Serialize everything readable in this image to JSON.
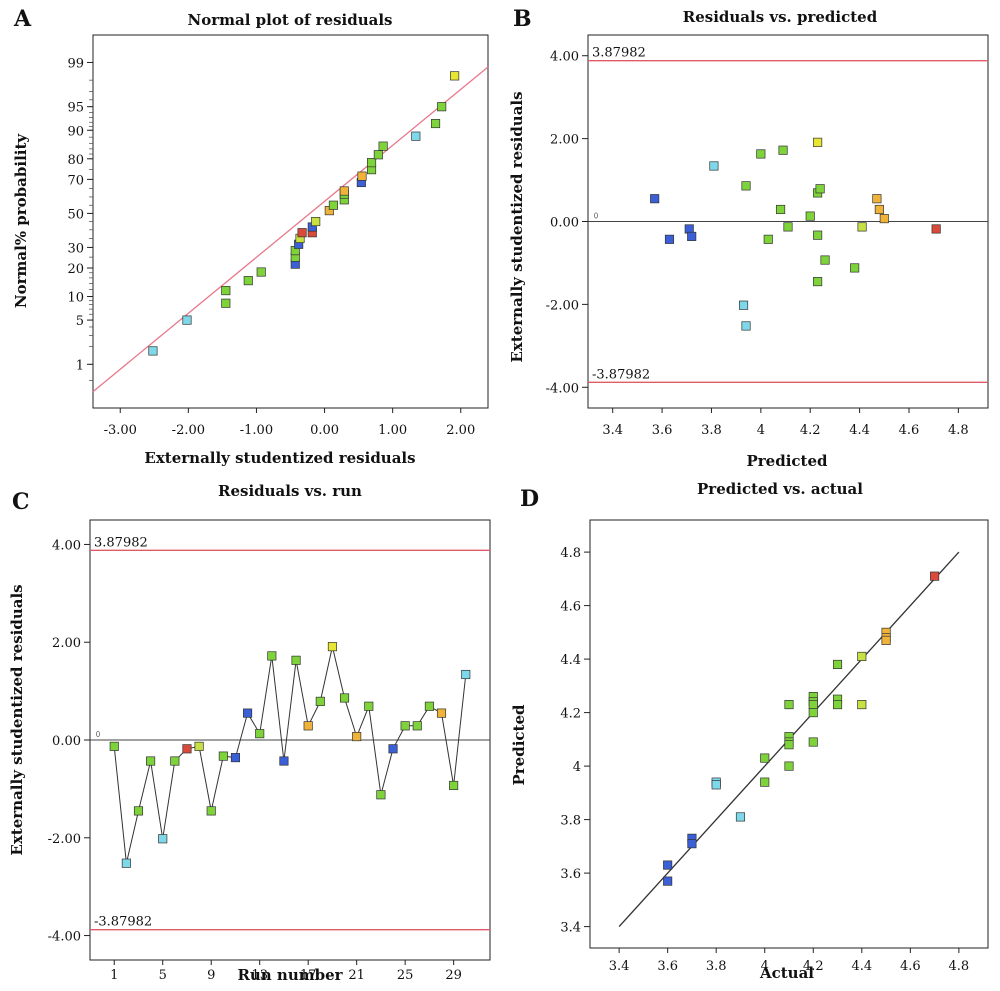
{
  "chart_data": [
    {
      "panel_label": "A",
      "type": "scatter",
      "title": "Normal plot of residuals",
      "xlabel": "Externally studentized residuals",
      "ylabel": "Normal% probability",
      "xlim": [
        -3.4,
        2.4
      ],
      "x_ticks": [
        -3,
        -2,
        -1,
        0,
        1,
        2
      ],
      "x_tick_labels": [
        "-3.00",
        "-2.00",
        "-1.00",
        "0.00",
        "1.00",
        "2.00"
      ],
      "y_scale": "normal-probability",
      "y_tick_labels": [
        "1",
        "5",
        "10",
        "20",
        "30",
        "50",
        "70",
        "80",
        "90",
        "95",
        "99"
      ],
      "y_ticks": [
        1,
        5,
        10,
        20,
        30,
        50,
        70,
        80,
        90,
        95,
        99
      ],
      "fit_line": {
        "x": [
          -3.4,
          2.4
        ],
        "y": [
          0.3,
          98.8
        ],
        "color": "#e8788c"
      },
      "points": [
        {
          "x": -2.52,
          "y": 1.7,
          "color": "#7ed8ea"
        },
        {
          "x": -2.02,
          "y": 5.0,
          "color": "#7ed8ea"
        },
        {
          "x": -1.45,
          "y": 8.3,
          "color": "#7ed33a"
        },
        {
          "x": -1.45,
          "y": 11.7,
          "color": "#7ed33a"
        },
        {
          "x": -1.12,
          "y": 15.0,
          "color": "#7ed33a"
        },
        {
          "x": -0.93,
          "y": 18.3,
          "color": "#7ed33a"
        },
        {
          "x": -0.43,
          "y": 21.7,
          "color": "#3a5fd6"
        },
        {
          "x": -0.43,
          "y": 25.0,
          "color": "#7ed33a"
        },
        {
          "x": -0.43,
          "y": 28.3,
          "color": "#7ed33a"
        },
        {
          "x": -0.38,
          "y": 31.7,
          "color": "#3a5fd6"
        },
        {
          "x": -0.36,
          "y": 35.0,
          "color": "#c8e043"
        },
        {
          "x": -0.33,
          "y": 38.3,
          "color": "#d94a3a"
        },
        {
          "x": -0.18,
          "y": 38.3,
          "color": "#d94a3a"
        },
        {
          "x": -0.18,
          "y": 41.7,
          "color": "#3a5fd6"
        },
        {
          "x": -0.13,
          "y": 45.0,
          "color": "#c8e043"
        },
        {
          "x": 0.07,
          "y": 51.7,
          "color": "#f0b33a"
        },
        {
          "x": 0.13,
          "y": 55.0,
          "color": "#7ed33a"
        },
        {
          "x": 0.29,
          "y": 58.3,
          "color": "#7ed33a"
        },
        {
          "x": 0.29,
          "y": 61.7,
          "color": "#7ed33a"
        },
        {
          "x": 0.29,
          "y": 63.5,
          "color": "#f0b33a"
        },
        {
          "x": 0.54,
          "y": 68.3,
          "color": "#3a5fd6"
        },
        {
          "x": 0.55,
          "y": 71.7,
          "color": "#f0b33a"
        },
        {
          "x": 0.69,
          "y": 75.0,
          "color": "#7ed33a"
        },
        {
          "x": 0.69,
          "y": 78.3,
          "color": "#7ed33a"
        },
        {
          "x": 0.79,
          "y": 81.7,
          "color": "#7ed33a"
        },
        {
          "x": 0.86,
          "y": 85.0,
          "color": "#7ed33a"
        },
        {
          "x": 1.34,
          "y": 88.3,
          "color": "#7ed8ea"
        },
        {
          "x": 1.63,
          "y": 91.7,
          "color": "#7ed33a"
        },
        {
          "x": 1.72,
          "y": 95.0,
          "color": "#7ed33a"
        },
        {
          "x": 1.91,
          "y": 98.3,
          "color": "#e6e633"
        }
      ]
    },
    {
      "panel_label": "B",
      "type": "scatter",
      "title": "Residuals vs. predicted",
      "xlabel": "Predicted",
      "ylabel": "Externally studentized residuals",
      "xlim": [
        3.3,
        4.92
      ],
      "ylim": [
        -4.5,
        4.5
      ],
      "x_ticks": [
        3.4,
        3.6,
        3.8,
        4.0,
        4.2,
        4.4,
        4.6,
        4.8
      ],
      "x_tick_labels": [
        "3.4",
        "3.6",
        "3.8",
        "4",
        "4.2",
        "4.4",
        "4.6",
        "4.8"
      ],
      "y_ticks": [
        -4,
        -2,
        0,
        2,
        4
      ],
      "y_tick_labels": [
        "-4.00",
        "-2.00",
        "0.00",
        "2.00",
        "4.00"
      ],
      "upper_limit": {
        "value": 3.87982,
        "label": "3.87982"
      },
      "lower_limit": {
        "value": -3.87982,
        "label": "-3.87982"
      },
      "zero_line": 0,
      "points": [
        {
          "x": 3.57,
          "y": 0.55,
          "color": "#3a5fd6"
        },
        {
          "x": 3.63,
          "y": -0.43,
          "color": "#3a5fd6"
        },
        {
          "x": 3.71,
          "y": -0.18,
          "color": "#3a5fd6"
        },
        {
          "x": 3.72,
          "y": -0.36,
          "color": "#3a5fd6"
        },
        {
          "x": 3.81,
          "y": 1.34,
          "color": "#7ed8ea"
        },
        {
          "x": 3.93,
          "y": -2.02,
          "color": "#7ed8ea"
        },
        {
          "x": 3.94,
          "y": -2.52,
          "color": "#7ed8ea"
        },
        {
          "x": 3.94,
          "y": 0.86,
          "color": "#7ed33a"
        },
        {
          "x": 4.0,
          "y": 1.63,
          "color": "#7ed33a"
        },
        {
          "x": 4.03,
          "y": -0.43,
          "color": "#7ed33a"
        },
        {
          "x": 4.08,
          "y": 0.29,
          "color": "#7ed33a"
        },
        {
          "x": 4.09,
          "y": 1.72,
          "color": "#7ed33a"
        },
        {
          "x": 4.11,
          "y": -0.13,
          "color": "#7ed33a"
        },
        {
          "x": 4.2,
          "y": 0.13,
          "color": "#7ed33a"
        },
        {
          "x": 4.23,
          "y": 1.91,
          "color": "#e6e633"
        },
        {
          "x": 4.23,
          "y": 0.69,
          "color": "#7ed33a"
        },
        {
          "x": 4.23,
          "y": -0.33,
          "color": "#7ed33a"
        },
        {
          "x": 4.23,
          "y": -1.45,
          "color": "#7ed33a"
        },
        {
          "x": 4.24,
          "y": 0.79,
          "color": "#7ed33a"
        },
        {
          "x": 4.26,
          "y": -0.93,
          "color": "#7ed33a"
        },
        {
          "x": 4.38,
          "y": -1.12,
          "color": "#7ed33a"
        },
        {
          "x": 4.41,
          "y": -0.13,
          "color": "#c8e043"
        },
        {
          "x": 4.47,
          "y": 0.55,
          "color": "#f0b33a"
        },
        {
          "x": 4.48,
          "y": 0.29,
          "color": "#f0b33a"
        },
        {
          "x": 4.5,
          "y": 0.07,
          "color": "#f0b33a"
        },
        {
          "x": 4.71,
          "y": -0.18,
          "color": "#d94a3a"
        }
      ]
    },
    {
      "panel_label": "C",
      "type": "line",
      "title": "Residuals vs. run",
      "xlabel": "Run number",
      "ylabel": "Externally studentized residuals",
      "xlim": [
        -1,
        32
      ],
      "ylim": [
        -4.5,
        4.5
      ],
      "x_ticks": [
        1,
        5,
        9,
        13,
        17,
        21,
        25,
        29
      ],
      "x_tick_labels": [
        "1",
        "5",
        "9",
        "13",
        "17",
        "21",
        "25",
        "29"
      ],
      "y_ticks": [
        -4,
        -2,
        0,
        2,
        4
      ],
      "y_tick_labels": [
        "-4.00",
        "-2.00",
        "0.00",
        "2.00",
        "4.00"
      ],
      "upper_limit": {
        "value": 3.87982,
        "label": "3.87982"
      },
      "lower_limit": {
        "value": -3.87982,
        "label": "-3.87982"
      },
      "zero_line": 0,
      "points": [
        {
          "x": 1,
          "y": -0.13,
          "color": "#7ed33a"
        },
        {
          "x": 2,
          "y": -2.52,
          "color": "#7ed8ea"
        },
        {
          "x": 3,
          "y": -1.45,
          "color": "#7ed33a"
        },
        {
          "x": 4,
          "y": -0.43,
          "color": "#7ed33a"
        },
        {
          "x": 5,
          "y": -2.02,
          "color": "#7ed8ea"
        },
        {
          "x": 6,
          "y": -0.43,
          "color": "#7ed33a"
        },
        {
          "x": 7,
          "y": -0.18,
          "color": "#d94a3a"
        },
        {
          "x": 8,
          "y": -0.13,
          "color": "#c8e043"
        },
        {
          "x": 9,
          "y": -1.45,
          "color": "#7ed33a"
        },
        {
          "x": 10,
          "y": -0.33,
          "color": "#7ed33a"
        },
        {
          "x": 11,
          "y": -0.36,
          "color": "#3a5fd6"
        },
        {
          "x": 12,
          "y": 0.55,
          "color": "#3a5fd6"
        },
        {
          "x": 13,
          "y": 0.13,
          "color": "#7ed33a"
        },
        {
          "x": 14,
          "y": 1.72,
          "color": "#7ed33a"
        },
        {
          "x": 15,
          "y": -0.43,
          "color": "#3a5fd6"
        },
        {
          "x": 16,
          "y": 1.63,
          "color": "#7ed33a"
        },
        {
          "x": 17,
          "y": 0.29,
          "color": "#f0b33a"
        },
        {
          "x": 18,
          "y": 0.79,
          "color": "#7ed33a"
        },
        {
          "x": 19,
          "y": 1.91,
          "color": "#e6e633"
        },
        {
          "x": 20,
          "y": 0.86,
          "color": "#7ed33a"
        },
        {
          "x": 21,
          "y": 0.07,
          "color": "#f0b33a"
        },
        {
          "x": 22,
          "y": 0.69,
          "color": "#7ed33a"
        },
        {
          "x": 23,
          "y": -1.12,
          "color": "#7ed33a"
        },
        {
          "x": 24,
          "y": -0.18,
          "color": "#3a5fd6"
        },
        {
          "x": 25,
          "y": 0.29,
          "color": "#7ed33a"
        },
        {
          "x": 26,
          "y": 0.29,
          "color": "#7ed33a"
        },
        {
          "x": 27,
          "y": 0.69,
          "color": "#7ed33a"
        },
        {
          "x": 28,
          "y": 0.55,
          "color": "#f0b33a"
        },
        {
          "x": 29,
          "y": -0.93,
          "color": "#7ed33a"
        },
        {
          "x": 30,
          "y": 1.34,
          "color": "#7ed8ea"
        }
      ]
    },
    {
      "panel_label": "D",
      "type": "scatter",
      "title": "Predicted vs. actual",
      "xlabel": "Actual",
      "ylabel": "Predicted",
      "xlim": [
        3.28,
        4.92
      ],
      "ylim": [
        3.32,
        4.92
      ],
      "x_ticks": [
        3.4,
        3.6,
        3.8,
        4.0,
        4.2,
        4.4,
        4.6,
        4.8
      ],
      "x_tick_labels": [
        "3.4",
        "3.6",
        "3.8",
        "4",
        "4.2",
        "4.4",
        "4.6",
        "4.8"
      ],
      "y_ticks": [
        3.4,
        3.6,
        3.8,
        4.0,
        4.2,
        4.4,
        4.6,
        4.8
      ],
      "y_tick_labels": [
        "3.4",
        "3.6",
        "3.8",
        "4",
        "4.2",
        "4.4",
        "4.6",
        "4.8"
      ],
      "fit_line": {
        "x": [
          3.4,
          4.8
        ],
        "y": [
          3.4,
          4.8
        ],
        "color": "#333333"
      },
      "points": [
        {
          "x": 3.6,
          "y": 3.63,
          "color": "#3a5fd6"
        },
        {
          "x": 3.6,
          "y": 3.57,
          "color": "#3a5fd6"
        },
        {
          "x": 3.7,
          "y": 3.73,
          "color": "#3a5fd6"
        },
        {
          "x": 3.7,
          "y": 3.71,
          "color": "#3a5fd6"
        },
        {
          "x": 3.8,
          "y": 3.94,
          "color": "#7ed8ea"
        },
        {
          "x": 3.8,
          "y": 3.93,
          "color": "#7ed8ea"
        },
        {
          "x": 3.9,
          "y": 3.81,
          "color": "#7ed8ea"
        },
        {
          "x": 4.0,
          "y": 4.03,
          "color": "#7ed33a"
        },
        {
          "x": 4.0,
          "y": 3.94,
          "color": "#7ed33a"
        },
        {
          "x": 4.1,
          "y": 4.23,
          "color": "#7ed33a"
        },
        {
          "x": 4.1,
          "y": 4.11,
          "color": "#7ed33a"
        },
        {
          "x": 4.1,
          "y": 4.09,
          "color": "#7ed33a"
        },
        {
          "x": 4.1,
          "y": 4.08,
          "color": "#7ed33a"
        },
        {
          "x": 4.1,
          "y": 4.0,
          "color": "#7ed33a"
        },
        {
          "x": 4.2,
          "y": 4.26,
          "color": "#7ed33a"
        },
        {
          "x": 4.2,
          "y": 4.24,
          "color": "#7ed33a"
        },
        {
          "x": 4.2,
          "y": 4.23,
          "color": "#7ed33a"
        },
        {
          "x": 4.2,
          "y": 4.2,
          "color": "#7ed33a"
        },
        {
          "x": 4.2,
          "y": 4.09,
          "color": "#7ed33a"
        },
        {
          "x": 4.3,
          "y": 4.38,
          "color": "#7ed33a"
        },
        {
          "x": 4.3,
          "y": 4.25,
          "color": "#7ed33a"
        },
        {
          "x": 4.3,
          "y": 4.23,
          "color": "#7ed33a"
        },
        {
          "x": 4.4,
          "y": 4.41,
          "color": "#c8e043"
        },
        {
          "x": 4.4,
          "y": 4.23,
          "color": "#c8e043"
        },
        {
          "x": 4.5,
          "y": 4.5,
          "color": "#f0b33a"
        },
        {
          "x": 4.5,
          "y": 4.48,
          "color": "#f0b33a"
        },
        {
          "x": 4.5,
          "y": 4.47,
          "color": "#f0b33a"
        },
        {
          "x": 4.7,
          "y": 4.71,
          "color": "#d94a3a"
        }
      ]
    }
  ]
}
